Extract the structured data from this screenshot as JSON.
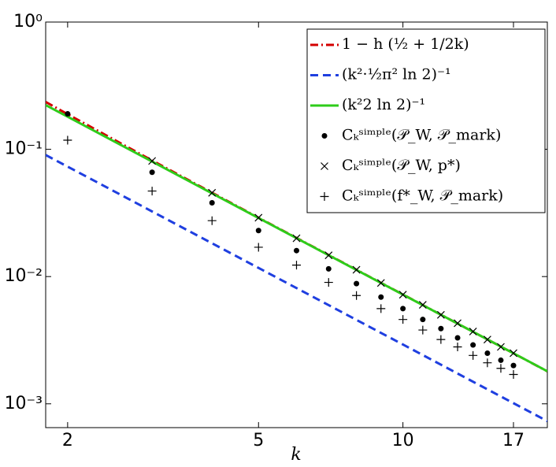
{
  "chart_data": {
    "type": "line",
    "xlabel": "k",
    "xscale": "log",
    "yscale": "log",
    "xlim": [
      1.8,
      20
    ],
    "ylim": [
      0.00065,
      1
    ],
    "xticks": [
      2,
      5,
      10,
      17
    ],
    "yticks": [
      {
        "value": 1,
        "label": "10⁰"
      },
      {
        "value": 0.1,
        "label": "10⁻¹"
      },
      {
        "value": 0.01,
        "label": "10⁻²"
      },
      {
        "value": 0.001,
        "label": "10⁻³"
      }
    ],
    "legend": "upper right",
    "series": [
      {
        "name": "1 − h (½ + 1/2k)",
        "color": "#d40000",
        "kind": "line",
        "dash": "dashdot",
        "x": [
          1.8,
          2,
          3,
          4,
          5,
          10,
          20
        ],
        "values": [
          0.2358,
          0.1887,
          0.0817,
          0.0456,
          0.029,
          0.00723,
          0.0018
        ]
      },
      {
        "name": "(k²·½π² ln 2)⁻¹",
        "color": "#1f3fe0",
        "kind": "line",
        "dash": "dashed",
        "x": [
          1.8,
          2,
          5,
          10,
          20
        ],
        "values": [
          0.09023,
          0.07309,
          0.01169,
          0.002924,
          0.000731
        ]
      },
      {
        "name": "(k²2 ln 2)⁻¹",
        "color": "#2ecc1a",
        "kind": "line",
        "dash": "solid",
        "x": [
          1.8,
          2,
          5,
          10,
          20
        ],
        "values": [
          0.2226,
          0.1803,
          0.02885,
          0.007213,
          0.001803
        ]
      },
      {
        "name": "Cₖˢⁱᵐᵖˡᵉ(𝒫_W, 𝒫_mark)",
        "color": "#000000",
        "kind": "scatter",
        "marker": "dot",
        "x": [
          2,
          3,
          4,
          5,
          6,
          7,
          8,
          9,
          10,
          11,
          12,
          13,
          14,
          15,
          16,
          17
        ],
        "values": [
          0.19,
          0.066,
          0.038,
          0.023,
          0.016,
          0.0115,
          0.0088,
          0.0069,
          0.0056,
          0.0046,
          0.0039,
          0.0033,
          0.0029,
          0.0025,
          0.0022,
          0.002
        ]
      },
      {
        "name": "Cₖˢⁱᵐᵖˡᵉ(𝒫_W, p*)",
        "color": "#000000",
        "kind": "scatter",
        "marker": "x",
        "x": [
          3,
          4,
          5,
          6,
          7,
          8,
          9,
          10,
          11,
          12,
          13,
          14,
          15,
          16,
          17
        ],
        "values": [
          0.081,
          0.0455,
          0.029,
          0.02,
          0.0147,
          0.0113,
          0.0089,
          0.0072,
          0.006,
          0.005,
          0.0043,
          0.0037,
          0.0032,
          0.0028,
          0.0025
        ]
      },
      {
        "name": "Cₖˢⁱᵐᵖˡᵉ(f*_W, 𝒫_mark)",
        "color": "#000000",
        "kind": "scatter",
        "marker": "plus",
        "x": [
          2,
          3,
          4,
          5,
          6,
          7,
          8,
          9,
          10,
          11,
          12,
          13,
          14,
          15,
          16,
          17
        ],
        "values": [
          0.118,
          0.047,
          0.0275,
          0.017,
          0.0123,
          0.009,
          0.0071,
          0.0056,
          0.0046,
          0.0038,
          0.0032,
          0.0028,
          0.0024,
          0.0021,
          0.0019,
          0.0017
        ]
      }
    ]
  }
}
